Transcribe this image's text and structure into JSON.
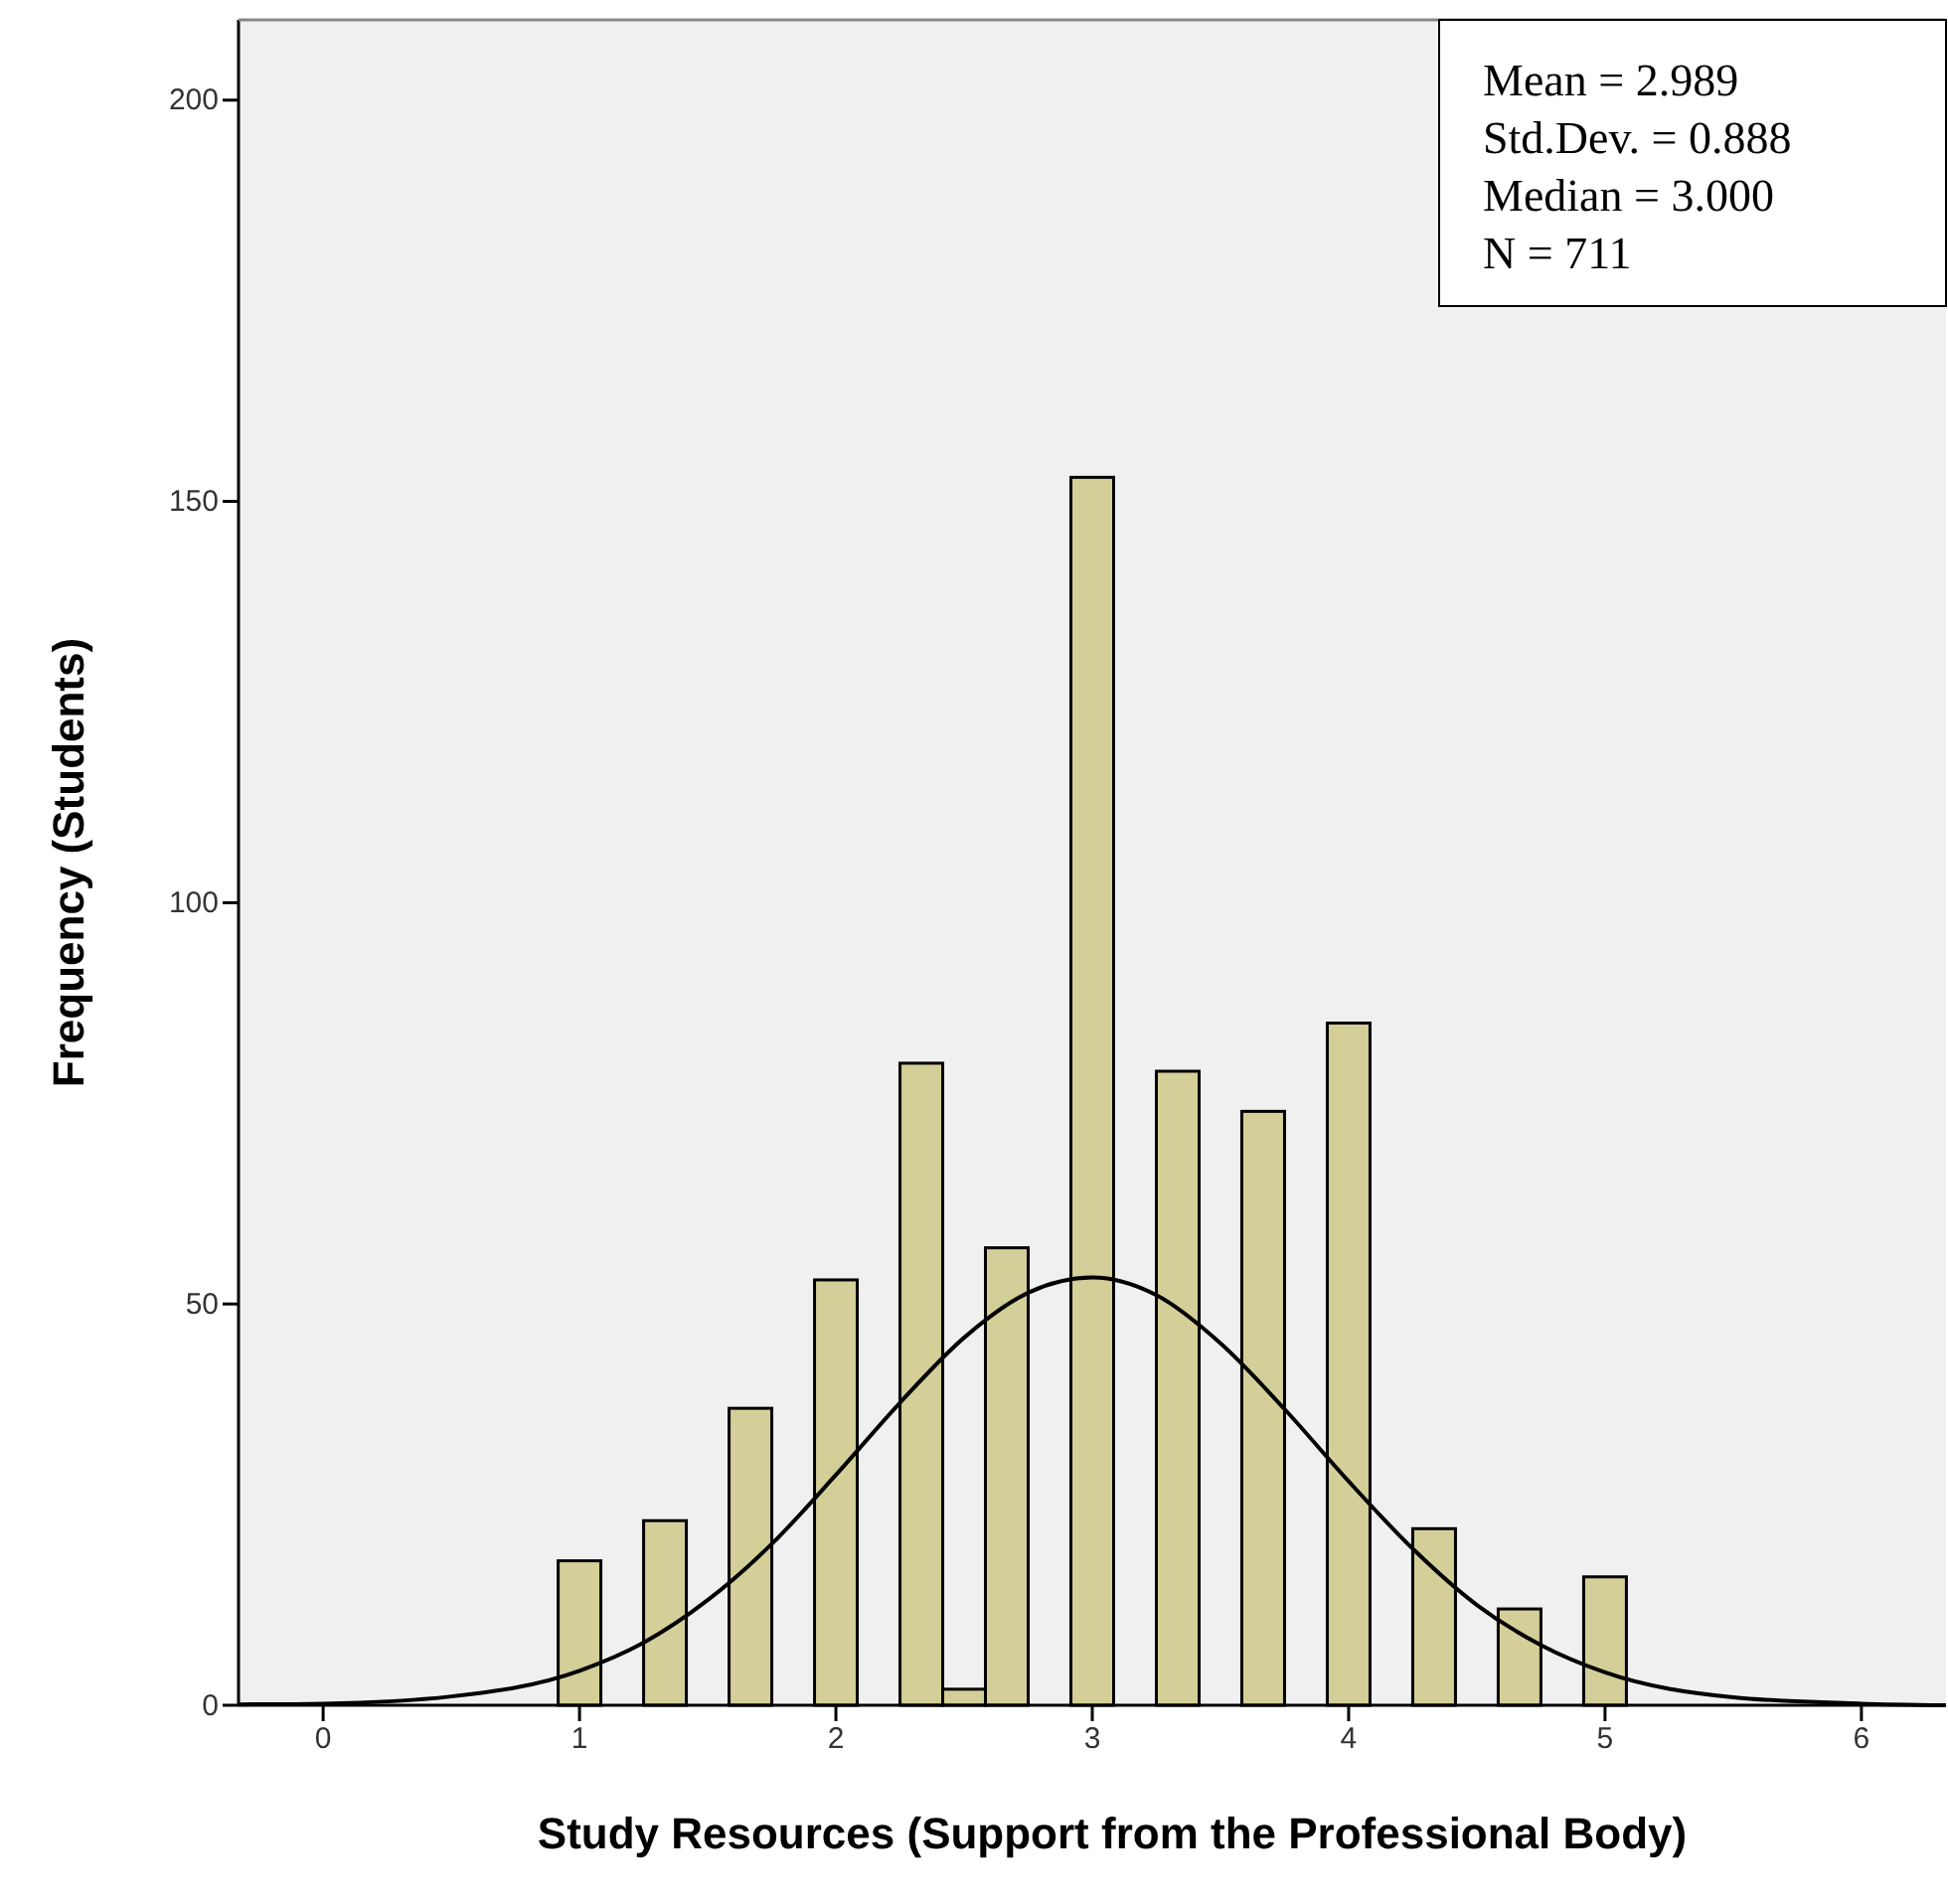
{
  "chart_data": {
    "type": "histogram",
    "xlabel": "Study Resources (Support from the Professional Body)",
    "ylabel": "Frequency (Students)",
    "xlim": [
      -0.33,
      6.33
    ],
    "ylim": [
      0,
      210
    ],
    "xticks": [
      0,
      1,
      2,
      3,
      4,
      5,
      6
    ],
    "yticks": [
      0,
      50,
      100,
      150,
      200
    ],
    "grid": false,
    "annotations": [
      "Mean = 2.989",
      "Std.Dev. = 0.888",
      "Median = 3.000",
      "N = 711"
    ],
    "series": [
      {
        "color": "#d4cf98",
        "bins": [
          0.9167,
          1.0833,
          1.25,
          1.4167,
          1.5833,
          1.75,
          1.9167,
          2.0833,
          2.25,
          2.4167,
          2.5833,
          2.75,
          2.9167,
          3.0833,
          3.25,
          3.4167,
          3.5833,
          3.75,
          3.9167,
          4.0833,
          4.25,
          4.4167,
          4.5833,
          4.75,
          4.9167,
          5.0833
        ],
        "values": [
          18,
          0,
          23,
          0,
          37,
          0,
          53,
          0,
          80,
          2,
          57,
          0,
          153,
          0,
          79,
          0,
          74,
          0,
          85,
          0,
          22,
          0,
          12,
          0,
          16
        ]
      },
      {
        "type": "line",
        "color": "#000000",
        "x": [
          -0.33,
          0,
          0.5,
          1,
          1.25,
          1.5,
          1.75,
          2,
          2.25,
          2.5,
          2.75,
          3,
          3.25,
          3.5,
          3.75,
          4,
          4.25,
          4.5,
          4.75,
          5,
          5.5,
          6,
          6.33
        ],
        "values": [
          0.1,
          0.2,
          1.1,
          4.3,
          7.8,
          13.1,
          20.1,
          28.7,
          37.7,
          45.8,
          51.4,
          53.3,
          51.1,
          45.1,
          36.9,
          27.9,
          19.5,
          12.5,
          7.5,
          4.1,
          1.0,
          0.2,
          0.0
        ]
      }
    ]
  }
}
